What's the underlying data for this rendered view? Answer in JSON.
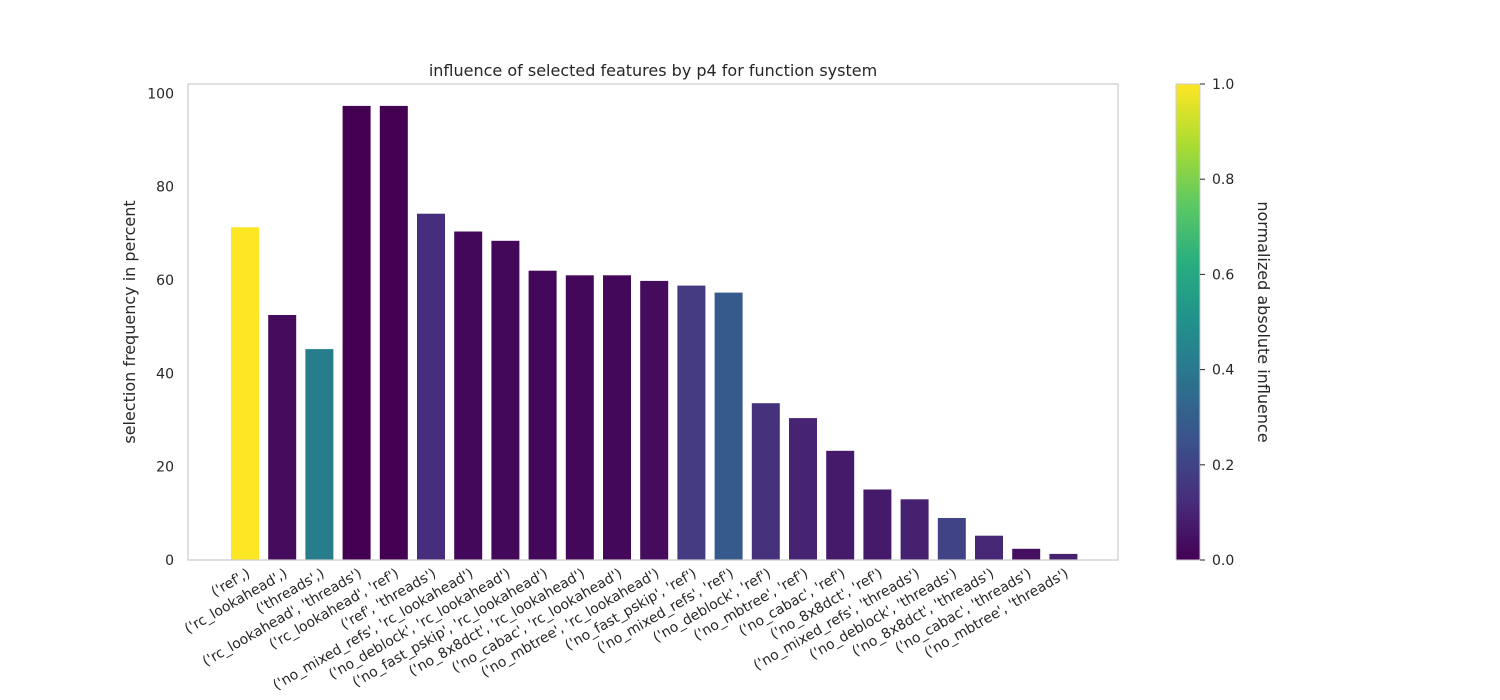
{
  "chart_data": {
    "type": "bar",
    "title": "influence of selected features by p4 for function system",
    "xlabel": "",
    "ylabel": "selection frequency in percent",
    "ylim": [
      0,
      102
    ],
    "yticks": [
      0,
      20,
      40,
      60,
      80,
      100
    ],
    "grid": false,
    "categories": [
      "('ref',)",
      "('rc_lookahead',)",
      "('threads',)",
      "('rc_lookahead', 'threads')",
      "('rc_lookahead', 'ref')",
      "('ref', 'threads')",
      "('no_mixed_refs', 'rc_lookahead')",
      "('no_deblock', 'rc_lookahead')",
      "('no_fast_pskip', 'rc_lookahead')",
      "('no_8x8dct', 'rc_lookahead')",
      "('no_cabac', 'rc_lookahead')",
      "('no_mbtree', 'rc_lookahead')",
      "('no_fast_pskip', 'ref')",
      "('no_mixed_refs', 'ref')",
      "('no_deblock', 'ref')",
      "('no_mbtree', 'ref')",
      "('no_cabac', 'ref')",
      "('no_8x8dct', 'ref')",
      "('no_mixed_refs', 'threads')",
      "('no_deblock', 'threads')",
      "('no_8x8dct', 'threads')",
      "('no_cabac', 'threads')",
      "('no_mbtree', 'threads')"
    ],
    "values": [
      71.3,
      52.5,
      45.2,
      97.3,
      97.3,
      74.2,
      70.4,
      68.4,
      62.0,
      61.0,
      61.0,
      59.8,
      58.8,
      57.3,
      33.6,
      30.4,
      23.4,
      15.1,
      13.0,
      9.0,
      5.2,
      2.4,
      1.3
    ],
    "influence": [
      1.0,
      0.03,
      0.42,
      0.0,
      0.0,
      0.13,
      0.02,
      0.02,
      0.02,
      0.02,
      0.02,
      0.03,
      0.17,
      0.28,
      0.14,
      0.1,
      0.07,
      0.07,
      0.09,
      0.2,
      0.11,
      0.04,
      0.09
    ],
    "colorbar": {
      "label": "normalized absolute influence",
      "range": [
        0.0,
        1.0
      ],
      "ticks": [
        "0.0",
        "0.2",
        "0.4",
        "0.6",
        "0.8",
        "1.0"
      ],
      "colormap": "viridis"
    }
  }
}
